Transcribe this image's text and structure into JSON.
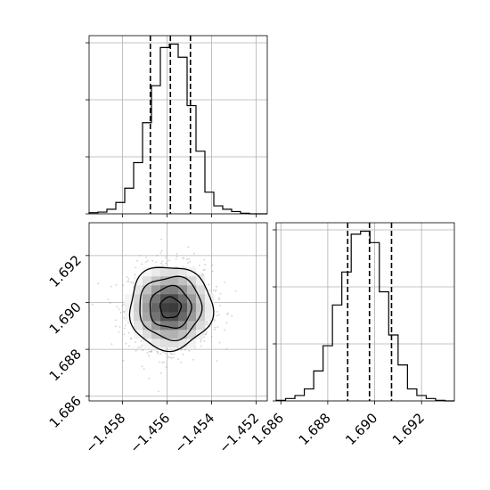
{
  "chart_data": {
    "type": "corner",
    "grid": true,
    "parameters": [
      {
        "range": [
          -1.4595,
          -1.4515
        ],
        "ticks": [
          -1.458,
          -1.456,
          -1.454,
          -1.452
        ],
        "tick_labels": [
          "−1.458",
          "−1.456",
          "−1.454",
          "−1.452"
        ],
        "quantiles": [
          -1.45675,
          -1.45585,
          -1.45495
        ],
        "histogram": {
          "bin_edges": [
            -1.4595,
            -1.4591,
            -1.4587,
            -1.4583,
            -1.4579,
            -1.4575,
            -1.4571,
            -1.4567,
            -1.4563,
            -1.4559,
            -1.4555,
            -1.4551,
            -1.4547,
            -1.4543,
            -1.4539,
            -1.4535,
            -1.4531,
            -1.4527,
            -1.4523,
            -1.4519,
            -1.4515
          ],
          "counts": [
            2,
            3,
            8,
            20,
            45,
            90,
            160,
            225,
            292,
            298,
            275,
            190,
            110,
            38,
            14,
            8,
            4,
            1,
            0,
            0
          ]
        }
      },
      {
        "range": [
          1.6858,
          1.6934
        ],
        "ticks": [
          1.686,
          1.688,
          1.69,
          1.692
        ],
        "tick_labels": [
          "1.686",
          "1.688",
          "1.690",
          "1.692"
        ],
        "quantiles": [
          1.68885,
          1.68978,
          1.69072
        ],
        "histogram": {
          "bin_edges": [
            1.6858,
            1.6862,
            1.6866,
            1.687,
            1.6874,
            1.6878,
            1.6882,
            1.6886,
            1.689,
            1.6894,
            1.6898,
            1.6902,
            1.6906,
            1.691,
            1.6914,
            1.6918,
            1.6922,
            1.6926,
            1.693,
            1.6934
          ],
          "counts": [
            1,
            4,
            9,
            20,
            50,
            92,
            160,
            215,
            278,
            283,
            264,
            182,
            110,
            60,
            20,
            9,
            4,
            1,
            0
          ]
        }
      }
    ],
    "joint": {
      "center": [
        -1.45585,
        1.68978
      ],
      "std": [
        0.00093,
        0.00089
      ],
      "contour_levels_sigma": [
        0.5,
        1.0,
        1.5,
        2.0
      ]
    }
  }
}
